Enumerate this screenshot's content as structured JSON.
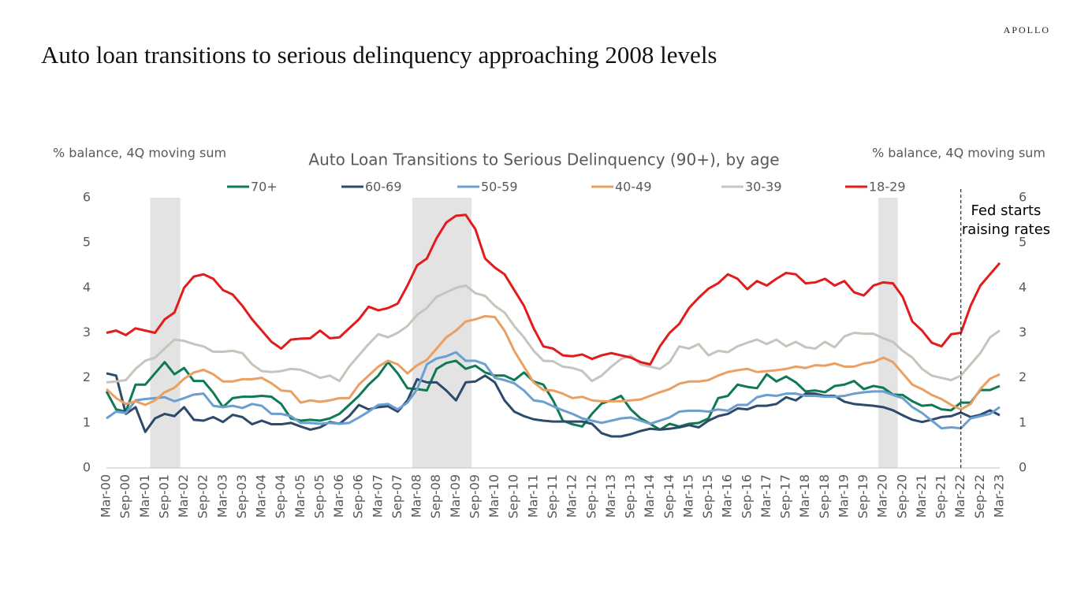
{
  "brand": "APOLLO",
  "headline": "Auto loan transitions to serious delinquency approaching 2008 levels",
  "chart_data": {
    "type": "line",
    "title": "Auto Loan Transitions to Serious Delinquency (90+), by age",
    "y_label": "% balance, 4Q moving sum",
    "y2_label": "% balance, 4Q moving sum",
    "ylim": [
      0,
      6
    ],
    "yticks": [
      0,
      1,
      2,
      3,
      4,
      5,
      6
    ],
    "y2lim": [
      0,
      6
    ],
    "y2ticks": [
      0,
      1,
      2,
      3,
      4,
      5,
      6
    ],
    "grid": false,
    "legend": "top",
    "shaded_ranges": [
      [
        4.5,
        7.6
      ],
      [
        31.5,
        37.6
      ],
      [
        79.5,
        81.5
      ]
    ],
    "shade_color": "#e3e3e3",
    "annotation": {
      "lines": [
        "Fed starts",
        "raising rates"
      ],
      "x": 88
    },
    "categories": [
      "Mar-00",
      null,
      "Sep-00",
      null,
      "Mar-01",
      null,
      "Sep-01",
      null,
      "Mar-02",
      null,
      "Sep-02",
      null,
      "Mar-03",
      null,
      "Sep-03",
      null,
      "Mar-04",
      null,
      "Sep-04",
      null,
      "Mar-05",
      null,
      "Sep-05",
      null,
      "Mar-06",
      null,
      "Sep-06",
      null,
      "Mar-07",
      null,
      "Sep-07",
      null,
      "Mar-08",
      null,
      "Sep-08",
      null,
      "Mar-09",
      null,
      "Sep-09",
      null,
      "Mar-10",
      null,
      "Sep-10",
      null,
      "Mar-11",
      null,
      "Sep-11",
      null,
      "Mar-12",
      null,
      "Sep-12",
      null,
      "Mar-13",
      null,
      "Sep-13",
      null,
      "Mar-14",
      null,
      "Sep-14",
      null,
      "Mar-15",
      null,
      "Sep-15",
      null,
      "Mar-16",
      null,
      "Sep-16",
      null,
      "Mar-17",
      null,
      "Sep-17",
      null,
      "Mar-18",
      null,
      "Sep-18",
      null,
      "Mar-19",
      null,
      "Sep-19",
      null,
      "Mar-20",
      null,
      "Sep-20",
      null,
      "Mar-21",
      null,
      "Sep-21",
      null,
      "Mar-22",
      null,
      "Sep-22",
      null,
      "Mar-23"
    ],
    "series": [
      {
        "name": "70+",
        "color": "#0e7a55",
        "values": [
          1.7,
          1.3,
          1.25,
          1.85,
          1.85,
          2.1,
          2.35,
          2.08,
          2.22,
          1.93,
          1.93,
          1.67,
          1.35,
          1.55,
          1.58,
          1.58,
          1.6,
          1.58,
          1.42,
          1.1,
          1.05,
          1.07,
          1.05,
          1.1,
          1.2,
          1.4,
          1.6,
          1.85,
          2.05,
          2.35,
          2.1,
          1.77,
          1.75,
          1.72,
          2.2,
          2.33,
          2.38,
          2.2,
          2.27,
          2.12,
          2.05,
          2.05,
          1.95,
          2.12,
          1.92,
          1.85,
          1.5,
          1.05,
          0.97,
          0.92,
          1.2,
          1.43,
          1.5,
          1.6,
          1.3,
          1.1,
          0.98,
          0.85,
          0.98,
          0.92,
          0.98,
          1.0,
          1.1,
          1.55,
          1.6,
          1.85,
          1.8,
          1.77,
          2.08,
          1.92,
          2.03,
          1.9,
          1.7,
          1.72,
          1.68,
          1.82,
          1.85,
          1.93,
          1.75,
          1.82,
          1.78,
          1.63,
          1.62,
          1.48,
          1.38,
          1.4,
          1.3,
          1.28,
          1.45,
          1.45,
          1.73,
          1.73,
          1.82
        ]
      },
      {
        "name": "60-69",
        "color": "#2d4a6b",
        "values": [
          2.1,
          2.05,
          1.2,
          1.35,
          0.8,
          1.1,
          1.2,
          1.15,
          1.35,
          1.07,
          1.05,
          1.13,
          1.02,
          1.18,
          1.13,
          0.97,
          1.05,
          0.97,
          0.97,
          1.0,
          0.92,
          0.85,
          0.9,
          1.02,
          0.98,
          1.15,
          1.4,
          1.3,
          1.35,
          1.37,
          1.25,
          1.5,
          1.97,
          1.9,
          1.9,
          1.72,
          1.5,
          1.9,
          1.92,
          2.05,
          1.9,
          1.5,
          1.25,
          1.15,
          1.08,
          1.05,
          1.03,
          1.03,
          1.03,
          1.03,
          0.98,
          0.77,
          0.7,
          0.7,
          0.75,
          0.82,
          0.87,
          0.85,
          0.87,
          0.9,
          0.95,
          0.9,
          1.05,
          1.15,
          1.2,
          1.32,
          1.3,
          1.38,
          1.38,
          1.42,
          1.57,
          1.5,
          1.65,
          1.65,
          1.6,
          1.6,
          1.47,
          1.42,
          1.4,
          1.38,
          1.35,
          1.28,
          1.17,
          1.07,
          1.02,
          1.07,
          1.13,
          1.15,
          1.23,
          1.13,
          1.18,
          1.28,
          1.17
        ]
      },
      {
        "name": "50-59",
        "color": "#6a9fcf",
        "values": [
          1.1,
          1.25,
          1.22,
          1.5,
          1.53,
          1.55,
          1.57,
          1.48,
          1.55,
          1.63,
          1.65,
          1.38,
          1.35,
          1.38,
          1.33,
          1.42,
          1.38,
          1.2,
          1.2,
          1.15,
          1.0,
          1.0,
          0.98,
          1.0,
          0.98,
          1.0,
          1.12,
          1.25,
          1.4,
          1.42,
          1.3,
          1.45,
          1.75,
          2.3,
          2.43,
          2.48,
          2.57,
          2.38,
          2.38,
          2.3,
          2.0,
          1.95,
          1.88,
          1.72,
          1.5,
          1.47,
          1.37,
          1.28,
          1.2,
          1.1,
          1.05,
          1.0,
          1.05,
          1.1,
          1.12,
          1.05,
          0.98,
          1.05,
          1.12,
          1.25,
          1.27,
          1.27,
          1.25,
          1.3,
          1.27,
          1.4,
          1.4,
          1.57,
          1.62,
          1.6,
          1.65,
          1.65,
          1.6,
          1.6,
          1.58,
          1.58,
          1.6,
          1.65,
          1.68,
          1.7,
          1.7,
          1.62,
          1.55,
          1.35,
          1.22,
          1.05,
          0.88,
          0.9,
          0.88,
          1.1,
          1.15,
          1.2,
          1.35
        ]
      },
      {
        "name": "40-49",
        "color": "#e9a062",
        "values": [
          1.75,
          1.55,
          1.42,
          1.48,
          1.4,
          1.5,
          1.68,
          1.78,
          1.98,
          2.12,
          2.18,
          2.08,
          1.92,
          1.92,
          1.97,
          1.97,
          2.0,
          1.88,
          1.72,
          1.7,
          1.45,
          1.5,
          1.47,
          1.5,
          1.55,
          1.55,
          1.85,
          2.05,
          2.25,
          2.38,
          2.3,
          2.1,
          2.28,
          2.4,
          2.65,
          2.9,
          3.05,
          3.25,
          3.3,
          3.37,
          3.35,
          3.05,
          2.6,
          2.25,
          1.9,
          1.73,
          1.72,
          1.65,
          1.55,
          1.58,
          1.5,
          1.48,
          1.48,
          1.48,
          1.5,
          1.52,
          1.6,
          1.68,
          1.75,
          1.87,
          1.92,
          1.92,
          1.95,
          2.05,
          2.13,
          2.17,
          2.2,
          2.13,
          2.15,
          2.17,
          2.2,
          2.25,
          2.22,
          2.28,
          2.27,
          2.32,
          2.25,
          2.25,
          2.32,
          2.35,
          2.45,
          2.35,
          2.1,
          1.85,
          1.75,
          1.62,
          1.53,
          1.4,
          1.3,
          1.42,
          1.75,
          1.98,
          2.08
        ]
      },
      {
        "name": "30-39",
        "color": "#c8c4bc",
        "values": [
          1.9,
          1.92,
          1.95,
          2.2,
          2.38,
          2.45,
          2.65,
          2.85,
          2.82,
          2.75,
          2.7,
          2.58,
          2.58,
          2.6,
          2.55,
          2.3,
          2.15,
          2.13,
          2.15,
          2.2,
          2.18,
          2.1,
          2.0,
          2.05,
          1.93,
          2.25,
          2.5,
          2.75,
          2.97,
          2.9,
          3.0,
          3.15,
          3.4,
          3.55,
          3.8,
          3.9,
          4.0,
          4.05,
          3.88,
          3.82,
          3.6,
          3.45,
          3.15,
          2.9,
          2.6,
          2.38,
          2.37,
          2.25,
          2.22,
          2.15,
          1.93,
          2.05,
          2.25,
          2.42,
          2.5,
          2.3,
          2.25,
          2.2,
          2.35,
          2.7,
          2.65,
          2.75,
          2.5,
          2.6,
          2.57,
          2.7,
          2.78,
          2.85,
          2.75,
          2.85,
          2.7,
          2.8,
          2.68,
          2.65,
          2.8,
          2.68,
          2.92,
          3.0,
          2.98,
          2.98,
          2.88,
          2.8,
          2.6,
          2.45,
          2.2,
          2.05,
          2.0,
          1.95,
          2.05,
          2.3,
          2.55,
          2.9,
          3.05
        ]
      },
      {
        "name": "18-29",
        "color": "#e31b1b",
        "values": [
          3.0,
          3.05,
          2.95,
          3.1,
          3.05,
          3.0,
          3.3,
          3.45,
          4.0,
          4.25,
          4.3,
          4.2,
          3.95,
          3.85,
          3.6,
          3.3,
          3.05,
          2.8,
          2.65,
          2.85,
          2.87,
          2.88,
          3.05,
          2.88,
          2.9,
          3.1,
          3.3,
          3.58,
          3.5,
          3.55,
          3.65,
          4.05,
          4.5,
          4.65,
          5.1,
          5.45,
          5.6,
          5.62,
          5.3,
          4.65,
          4.45,
          4.3,
          3.95,
          3.6,
          3.1,
          2.7,
          2.65,
          2.5,
          2.48,
          2.52,
          2.42,
          2.5,
          2.55,
          2.5,
          2.45,
          2.35,
          2.3,
          2.7,
          3.0,
          3.2,
          3.55,
          3.78,
          3.98,
          4.1,
          4.3,
          4.2,
          3.97,
          4.15,
          4.05,
          4.2,
          4.33,
          4.3,
          4.1,
          4.12,
          4.2,
          4.05,
          4.15,
          3.9,
          3.83,
          4.05,
          4.12,
          4.1,
          3.8,
          3.25,
          3.05,
          2.78,
          2.7,
          2.97,
          3.0,
          3.6,
          4.05,
          4.3,
          4.55
        ]
      }
    ]
  }
}
